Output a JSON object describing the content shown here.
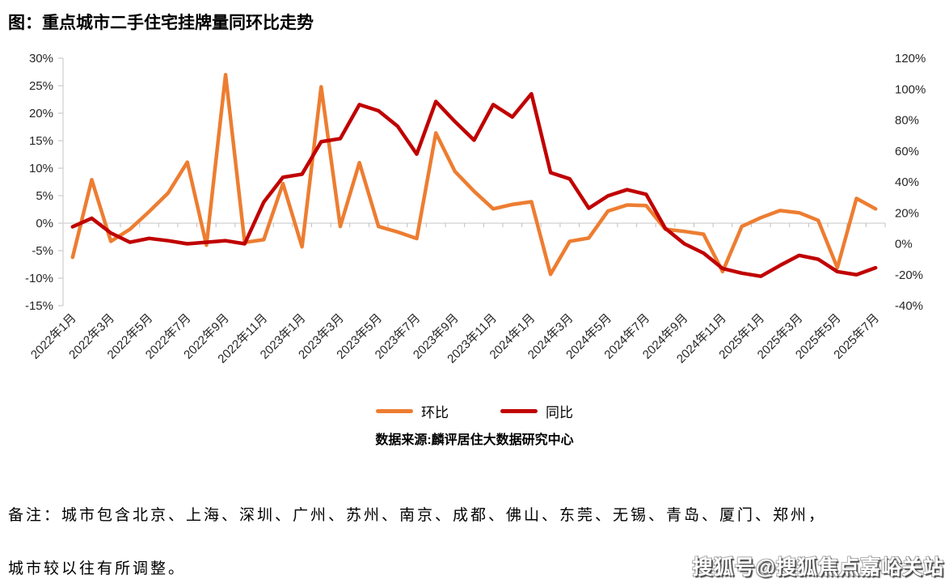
{
  "title": "图：重点城市二手住宅挂牌量同环比走势",
  "legend": [
    {
      "label": "环比",
      "color": "#ED7D31"
    },
    {
      "label": "同比",
      "color": "#C00000"
    }
  ],
  "source": "数据来源:麟评居住大数据研究中心",
  "note_line1": "备注：城市包含北京、上海、深圳、广州、苏州、南京、成都、佛山、东莞、无锡、青岛、厦门、郑州，",
  "note_line2": "城市较以往有所调整。",
  "watermark": "搜狐号@搜狐焦点嘉峪关站",
  "colors": {
    "mom_line": "#ED7D31",
    "yoy_line": "#C00000",
    "axis_line": "#D9D9D9",
    "tick": "#BFBFBF",
    "axis_text": "#262626"
  },
  "chart_data": {
    "type": "line",
    "title": "重点城市二手住宅挂牌量同环比走势",
    "x": [
      "2022年1月",
      "2022年2月",
      "2022年3月",
      "2022年4月",
      "2022年5月",
      "2022年6月",
      "2022年7月",
      "2022年8月",
      "2022年9月",
      "2022年10月",
      "2022年11月",
      "2022年12月",
      "2023年1月",
      "2023年2月",
      "2023年3月",
      "2023年4月",
      "2023年5月",
      "2023年6月",
      "2023年7月",
      "2023年8月",
      "2023年9月",
      "2023年10月",
      "2023年11月",
      "2023年12月",
      "2024年1月",
      "2024年2月",
      "2024年3月",
      "2024年4月",
      "2024年5月",
      "2024年6月",
      "2024年7月",
      "2024年8月",
      "2024年9月",
      "2024年10月",
      "2024年11月",
      "2024年12月",
      "2025年1月",
      "2025年2月",
      "2025年3月",
      "2025年4月",
      "2025年5月",
      "2025年6月",
      "2025年7月"
    ],
    "x_tick_labels": [
      "2022年1月",
      "2022年3月",
      "2022年5月",
      "2022年7月",
      "2022年9月",
      "2022年11月",
      "2023年1月",
      "2023年3月",
      "2023年5月",
      "2023年7月",
      "2023年9月",
      "2023年11月",
      "2024年1月",
      "2024年3月",
      "2024年5月",
      "2024年7月",
      "2024年9月",
      "2024年11月",
      "2025年1月",
      "2025年3月",
      "2025年5月",
      "2025年7月"
    ],
    "series": [
      {
        "name": "环比",
        "axis": "left",
        "color": "#ED7D31",
        "values": [
          -6.2,
          7.9,
          -3.3,
          -1.1,
          2.1,
          5.5,
          11.1,
          -4.0,
          27.0,
          -3.5,
          -3.0,
          7.2,
          -4.3,
          24.8,
          -0.6,
          11.0,
          -0.6,
          -1.6,
          -2.8,
          16.4,
          9.4,
          5.8,
          2.6,
          3.4,
          3.9,
          -9.3,
          -3.3,
          -2.7,
          2.2,
          3.3,
          3.2,
          -1.1,
          -1.5,
          -2.0,
          -8.8,
          -0.6,
          1.0,
          2.3,
          1.9,
          0.5,
          -8.1,
          4.5,
          2.6
        ]
      },
      {
        "name": "同比",
        "axis": "right",
        "color": "#C00000",
        "values": [
          11,
          16.5,
          7,
          1,
          3.5,
          2,
          0,
          1,
          2,
          0,
          27,
          43,
          45,
          66,
          68,
          90,
          86,
          76,
          58,
          92,
          79,
          67,
          90,
          82,
          97,
          46,
          42,
          23,
          31,
          35,
          32,
          10,
          0,
          -6,
          -16,
          -19,
          -21,
          -14,
          -7.5,
          -10,
          -18,
          -20,
          -15.5
        ]
      }
    ],
    "left_axis": {
      "min": -15,
      "max": 30,
      "step": 5,
      "unit": "%",
      "ticks": [
        "30%",
        "25%",
        "20%",
        "15%",
        "10%",
        "5%",
        "0%",
        "-5%",
        "-10%",
        "-15%"
      ]
    },
    "right_axis": {
      "min": -40,
      "max": 120,
      "step": 20,
      "unit": "%",
      "ticks": [
        "120%",
        "100%",
        "80%",
        "60%",
        "40%",
        "20%",
        "0%",
        "-20%",
        "-40%"
      ]
    },
    "grid": "zero-line-only",
    "legend_position": "bottom"
  }
}
